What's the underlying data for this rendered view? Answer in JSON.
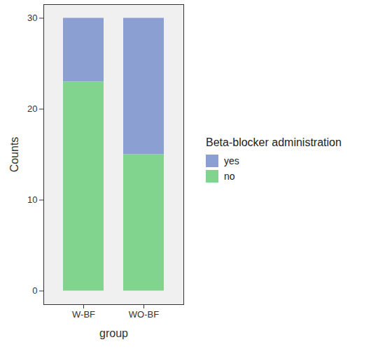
{
  "chart_data": {
    "type": "bar",
    "stacked": true,
    "xlabel": "group",
    "ylabel": "Counts",
    "legend_title": "Beta-blocker administration",
    "legend": "right",
    "categories": [
      "W-BF",
      "WO-BF"
    ],
    "series": [
      {
        "name": "yes",
        "color": "#8c9fd3",
        "values": [
          7,
          15
        ]
      },
      {
        "name": "no",
        "color": "#80d48e",
        "values": [
          23,
          15
        ]
      }
    ],
    "ylim": [
      -1.5,
      31.5
    ],
    "yticks": [
      0,
      10,
      20,
      30
    ],
    "grid": false
  }
}
